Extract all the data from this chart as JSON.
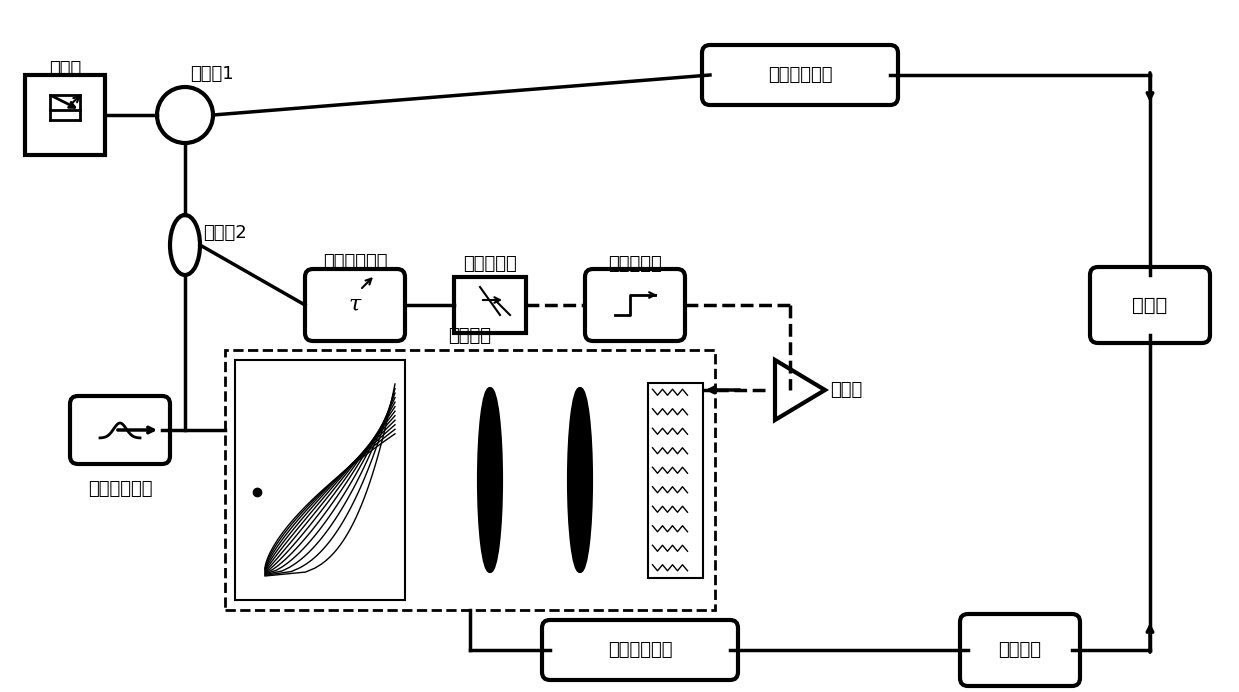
{
  "bg_color": "#ffffff",
  "line_color": "#000000",
  "lw": 2.5,
  "lw_thick": 3.0,
  "font_size": 13,
  "font_size_label": 12,
  "labels": {
    "laser": "激光器",
    "coupler1": "耦合器1",
    "coupler2": "耦合器2",
    "delay": "可调光延时线",
    "photodetector": "光电探测器",
    "lpf": "低通滤波器",
    "pulse_shaping": "脉冲整形",
    "bandpass": "光带通滤波器",
    "dispersion1": "色散补偿光纤",
    "dispersion2": "色散补偿光纤",
    "amplifier": "放大器",
    "optical_amp": "光放大器",
    "autocorr": "自相关",
    "tau": "τ"
  }
}
